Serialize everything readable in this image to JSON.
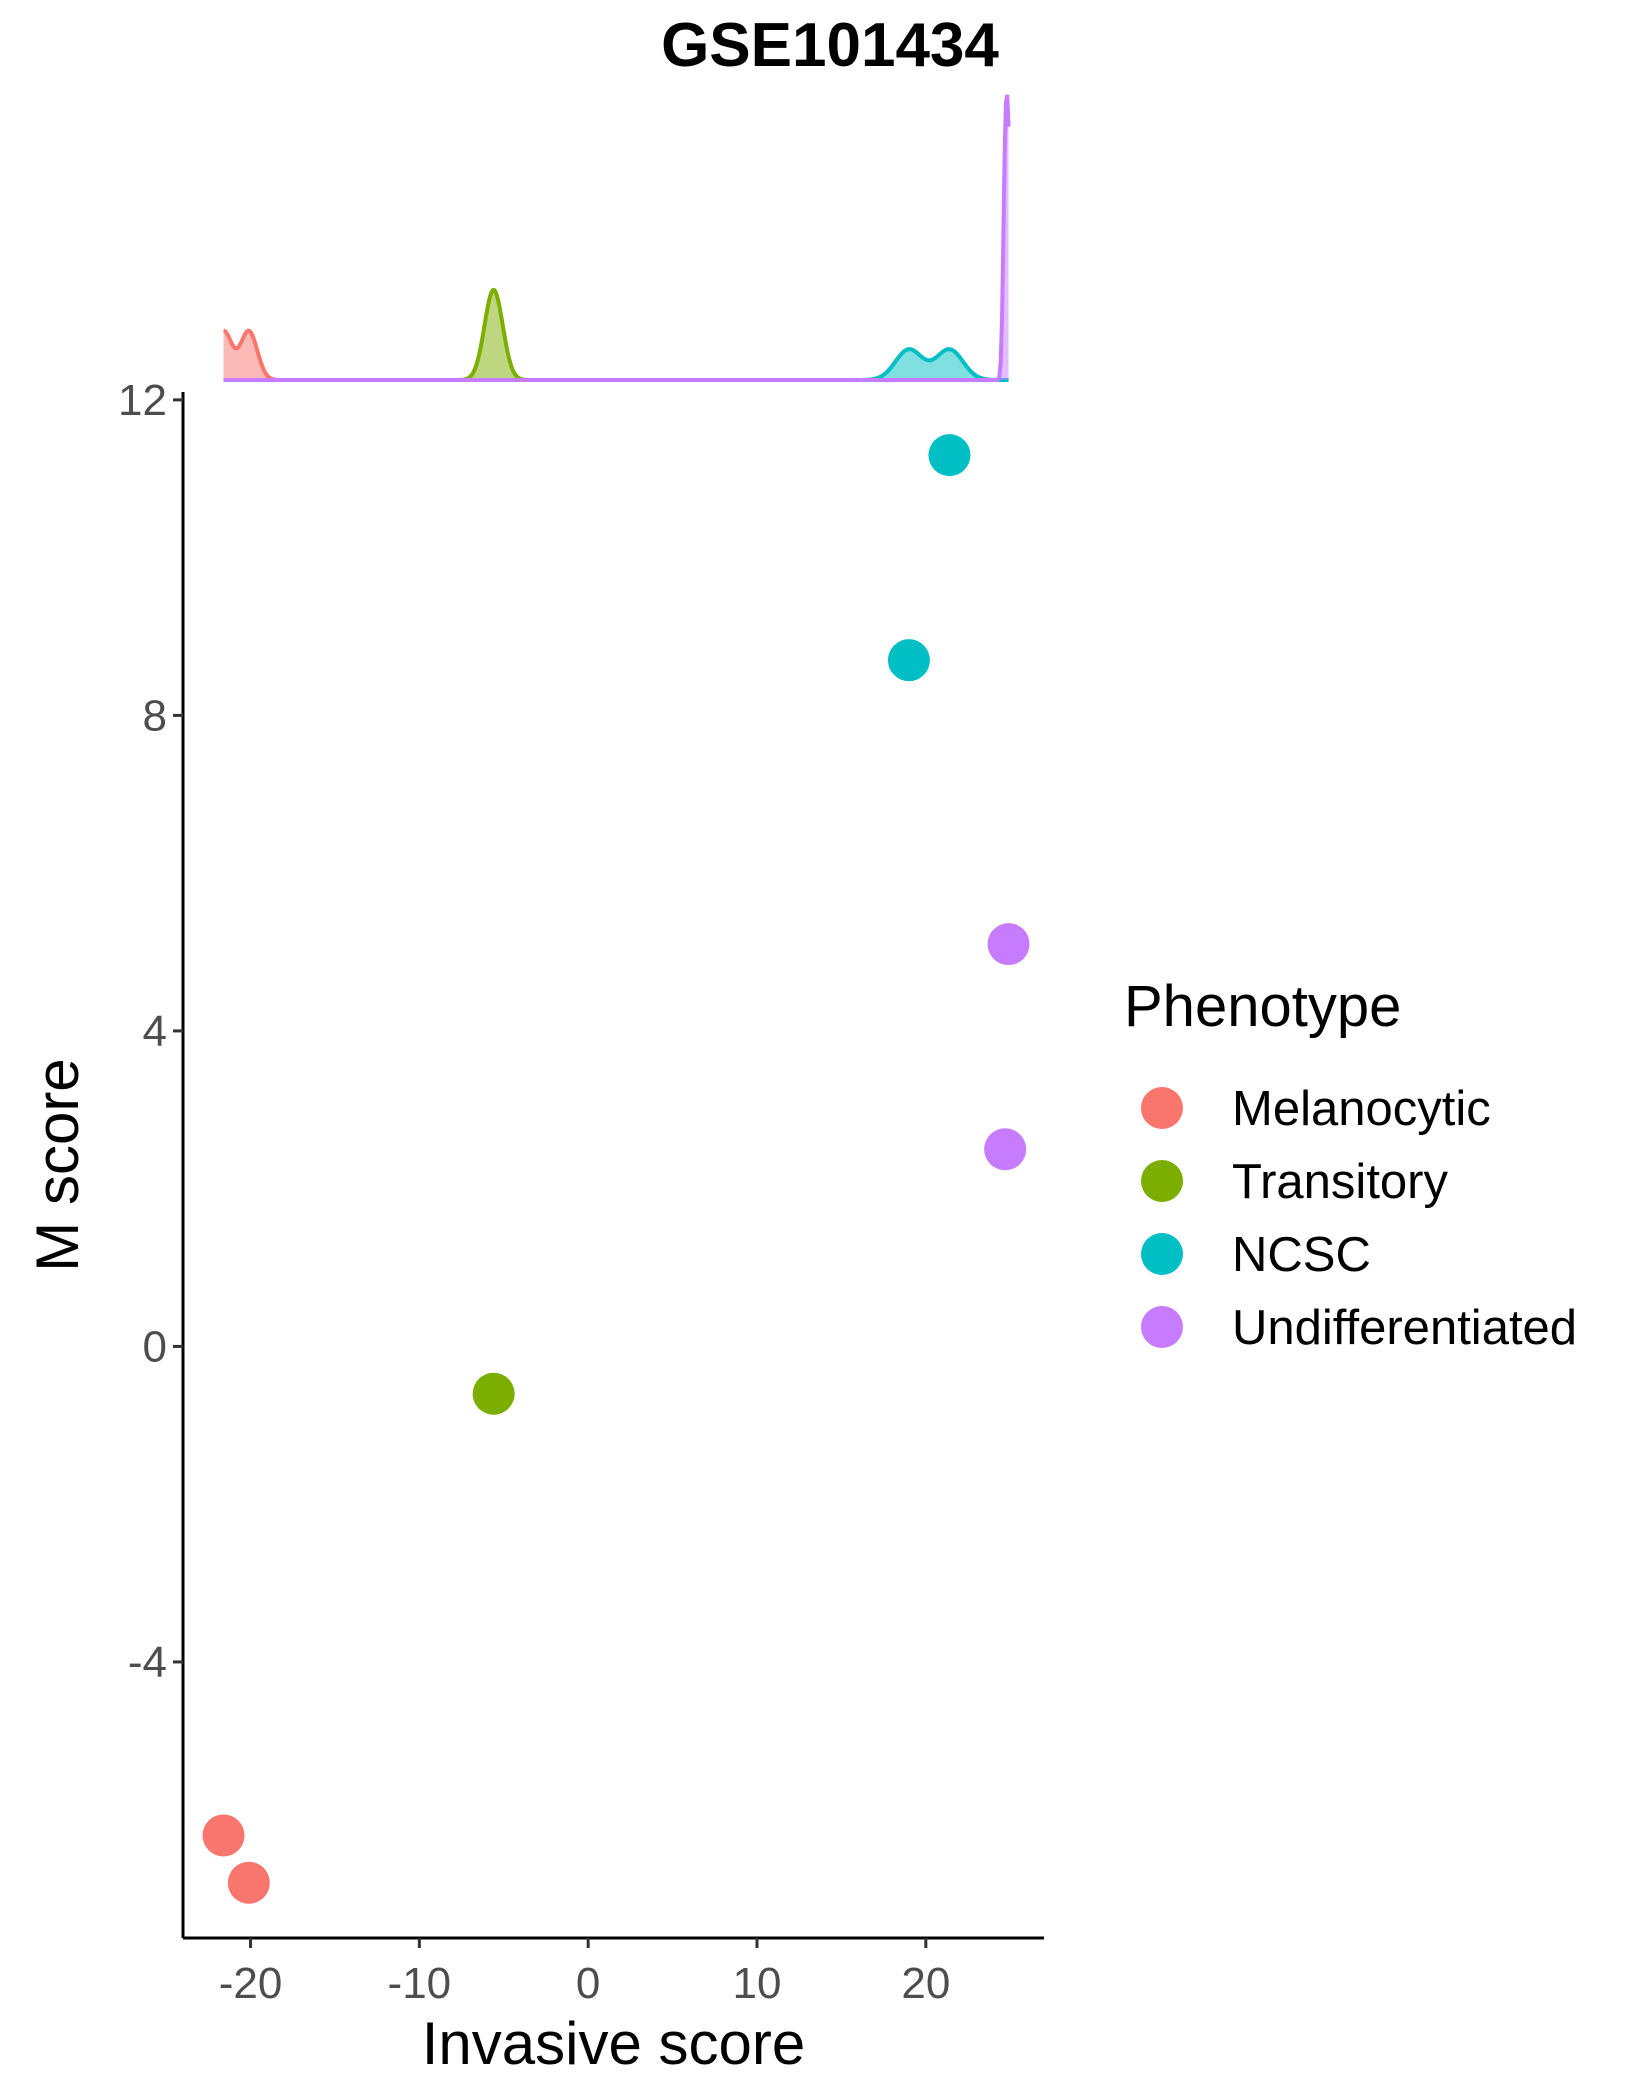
{
  "chart_data": {
    "type": "scatter",
    "title": "GSE101434",
    "xlabel": "Invasive score",
    "ylabel": "M score",
    "xlim": [
      -24,
      27
    ],
    "ylim": [
      -7.5,
      12.1
    ],
    "x_ticks": [
      -20,
      -10,
      0,
      10,
      20
    ],
    "y_ticks": [
      -4,
      0,
      4,
      8,
      12
    ],
    "x_tick_labels": [
      "-20",
      "-10",
      "0",
      "10",
      "20"
    ],
    "y_tick_labels": [
      "-4",
      "0",
      "4",
      "8",
      "12"
    ],
    "grid": false,
    "legend": {
      "title": "Phenotype",
      "position": "right"
    },
    "series": [
      {
        "name": "Melanocytic",
        "color": "#F8766D",
        "points": [
          {
            "x": -21.6,
            "y": -6.2
          },
          {
            "x": -20.1,
            "y": -6.8
          }
        ]
      },
      {
        "name": "Transitory",
        "color": "#7CAE00",
        "points": [
          {
            "x": -5.6,
            "y": -0.6
          }
        ]
      },
      {
        "name": "NCSC",
        "color": "#00BFC4",
        "points": [
          {
            "x": 21.4,
            "y": 11.3
          },
          {
            "x": 19.0,
            "y": 8.7
          }
        ]
      },
      {
        "name": "Undifferentiated",
        "color": "#C77CFF",
        "points": [
          {
            "x": 24.9,
            "y": 5.1
          },
          {
            "x": 24.7,
            "y": 2.5
          }
        ]
      }
    ],
    "marginal_density": {
      "axis": "x",
      "position": "top",
      "kind": "density",
      "fill": true
    }
  }
}
